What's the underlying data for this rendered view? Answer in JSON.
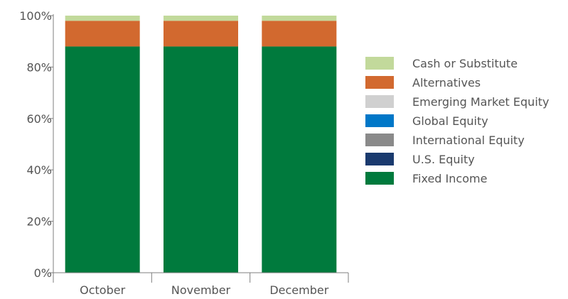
{
  "chart_data": {
    "type": "bar",
    "stacked": true,
    "categories": [
      "October",
      "November",
      "December"
    ],
    "ylim": [
      0,
      100
    ],
    "yticks": [
      0,
      20,
      40,
      60,
      80,
      100
    ],
    "ytick_labels": [
      "0%",
      "20%",
      "40%",
      "60%",
      "80%",
      "100%"
    ],
    "grid": false,
    "legend_position": "right",
    "series": [
      {
        "name": "Fixed Income",
        "color": "#007a3d",
        "values": [
          88,
          88,
          88
        ]
      },
      {
        "name": "U.S. Equity",
        "color": "#1a3a6e",
        "values": [
          0,
          0,
          0
        ]
      },
      {
        "name": "International Equity",
        "color": "#8a8a8a",
        "values": [
          0,
          0,
          0
        ]
      },
      {
        "name": "Global Equity",
        "color": "#0077c8",
        "values": [
          0,
          0,
          0
        ]
      },
      {
        "name": "Emerging Market Equity",
        "color": "#d0d0d0",
        "values": [
          0,
          0,
          0
        ]
      },
      {
        "name": "Alternatives",
        "color": "#d2692f",
        "values": [
          10,
          10,
          10
        ]
      },
      {
        "name": "Cash or Substitute",
        "color": "#c2d99b",
        "values": [
          2,
          2,
          2
        ]
      }
    ],
    "legend_order": [
      "Cash or Substitute",
      "Alternatives",
      "Emerging Market Equity",
      "Global Equity",
      "International Equity",
      "U.S. Equity",
      "Fixed Income"
    ],
    "axis_color": "#7f7f7f"
  }
}
